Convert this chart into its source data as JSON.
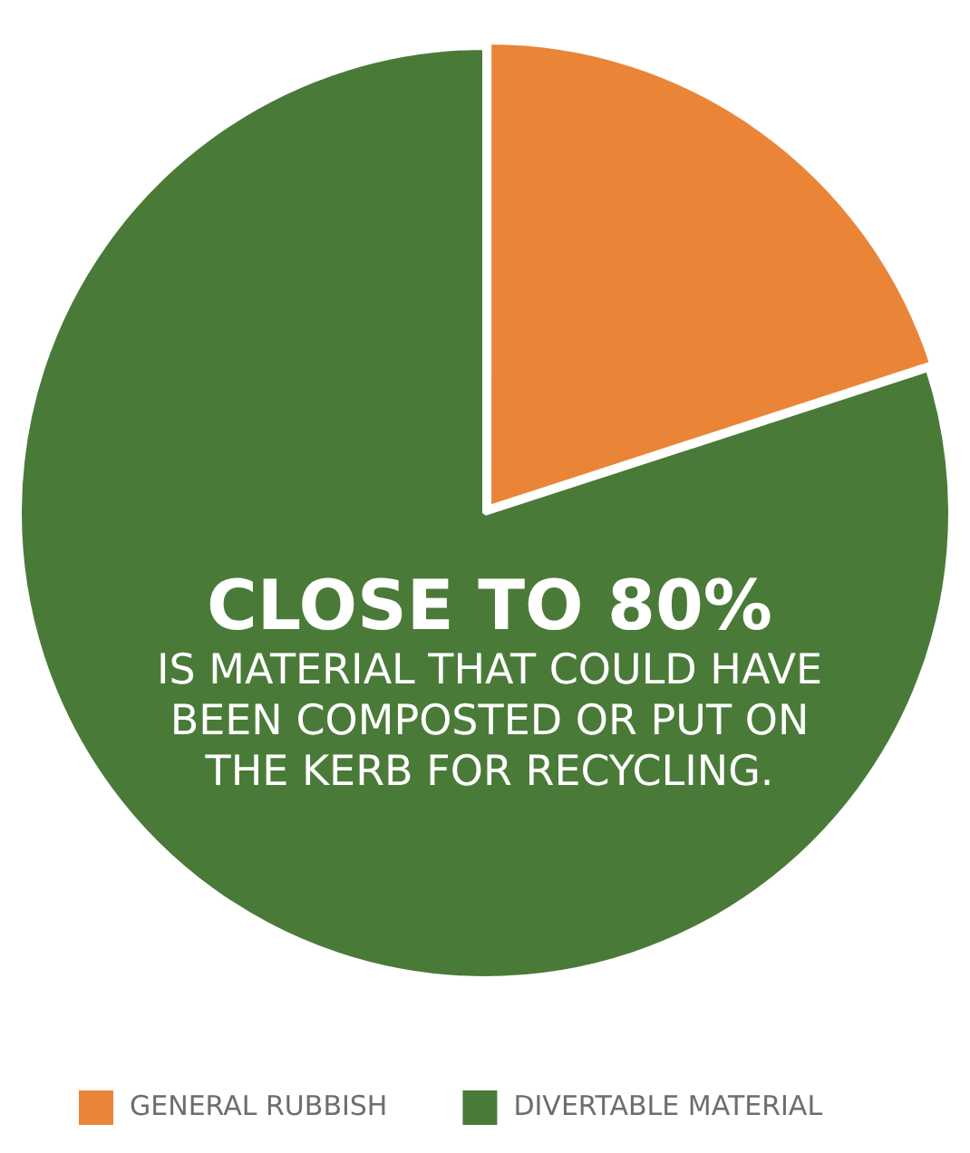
{
  "chart_data": {
    "type": "pie",
    "categories": [
      "GENERAL RUBBISH",
      "DIVERTABLE MATERIAL"
    ],
    "values": [
      20,
      80
    ],
    "colors": [
      "#ea8538",
      "#4a7a38"
    ],
    "legend": "bottom",
    "annotations": [
      "CLOSE TO 80%",
      "IS MATERIAL THAT COULD HAVE BEEN COMPOSTED OR PUT ON THE KERB FOR RECYCLING."
    ]
  }
}
